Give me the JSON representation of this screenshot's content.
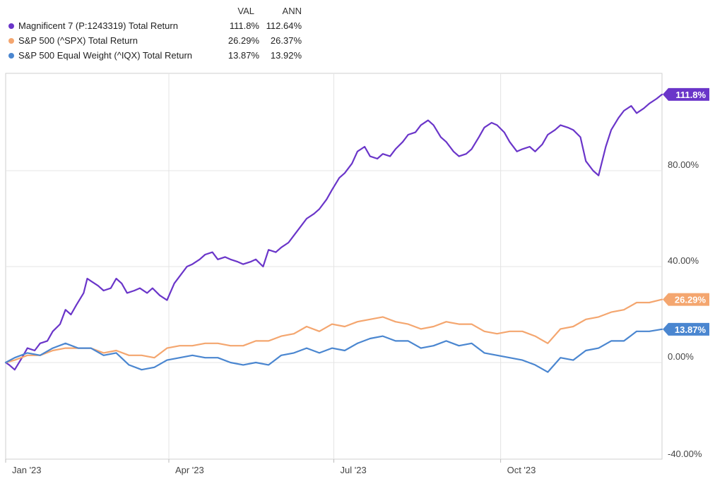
{
  "legend": {
    "col_val": "VAL",
    "col_ann": "ANN",
    "rows": [
      {
        "name": "Magnificent 7 (P:1243319) Total Return",
        "val": "111.8%",
        "ann": "112.64%",
        "color": "#6a35c9"
      },
      {
        "name": "S&P 500 (^SPX) Total Return",
        "val": "26.29%",
        "ann": "26.37%",
        "color": "#f4a66f"
      },
      {
        "name": "S&P 500 Equal Weight (^IQX) Total Return",
        "val": "13.87%",
        "ann": "13.92%",
        "color": "#4a86d0"
      }
    ]
  },
  "chart_data": {
    "type": "line",
    "x_range": [
      "2023-01-01",
      "2023-12-29"
    ],
    "x_ticks": [
      {
        "date": "2023-01-01",
        "label": "Jan '23"
      },
      {
        "date": "2023-04-01",
        "label": "Apr '23"
      },
      {
        "date": "2023-07-01",
        "label": "Jul '23"
      },
      {
        "date": "2023-10-01",
        "label": "Oct '23"
      }
    ],
    "y_range": [
      -40,
      120
    ],
    "y_ticks": [
      {
        "value": 80,
        "label": "80.00%"
      },
      {
        "value": 40,
        "label": "40.00%"
      },
      {
        "value": 0,
        "label": "0.00%"
      },
      {
        "value": -40,
        "label": "-40.00%"
      }
    ],
    "grid": true,
    "legend_position": "top-left",
    "series": [
      {
        "name": "Magnificent 7 (P:1243319) Total Return",
        "color": "#6a35c9",
        "end_label": "111.8%",
        "points": [
          [
            "2023-01-01",
            0
          ],
          [
            "2023-01-03",
            -1
          ],
          [
            "2023-01-06",
            -3
          ],
          [
            "2023-01-10",
            2
          ],
          [
            "2023-01-13",
            6
          ],
          [
            "2023-01-17",
            5
          ],
          [
            "2023-01-20",
            8
          ],
          [
            "2023-01-24",
            9
          ],
          [
            "2023-01-27",
            13
          ],
          [
            "2023-01-31",
            16
          ],
          [
            "2023-02-03",
            22
          ],
          [
            "2023-02-06",
            20
          ],
          [
            "2023-02-09",
            24
          ],
          [
            "2023-02-13",
            29
          ],
          [
            "2023-02-15",
            35
          ],
          [
            "2023-02-17",
            34
          ],
          [
            "2023-02-21",
            32
          ],
          [
            "2023-02-24",
            30
          ],
          [
            "2023-02-28",
            31
          ],
          [
            "2023-03-03",
            35
          ],
          [
            "2023-03-06",
            33
          ],
          [
            "2023-03-09",
            29
          ],
          [
            "2023-03-13",
            30
          ],
          [
            "2023-03-16",
            31
          ],
          [
            "2023-03-20",
            29
          ],
          [
            "2023-03-23",
            31
          ],
          [
            "2023-03-27",
            28
          ],
          [
            "2023-03-31",
            26
          ],
          [
            "2023-04-04",
            33
          ],
          [
            "2023-04-07",
            36
          ],
          [
            "2023-04-11",
            40
          ],
          [
            "2023-04-14",
            41
          ],
          [
            "2023-04-18",
            43
          ],
          [
            "2023-04-21",
            45
          ],
          [
            "2023-04-25",
            46
          ],
          [
            "2023-04-28",
            43
          ],
          [
            "2023-05-02",
            44
          ],
          [
            "2023-05-05",
            43
          ],
          [
            "2023-05-09",
            42
          ],
          [
            "2023-05-12",
            41
          ],
          [
            "2023-05-16",
            42
          ],
          [
            "2023-05-19",
            43
          ],
          [
            "2023-05-23",
            40
          ],
          [
            "2023-05-26",
            47
          ],
          [
            "2023-05-30",
            46
          ],
          [
            "2023-06-02",
            48
          ],
          [
            "2023-06-06",
            50
          ],
          [
            "2023-06-09",
            53
          ],
          [
            "2023-06-13",
            57
          ],
          [
            "2023-06-16",
            60
          ],
          [
            "2023-06-20",
            62
          ],
          [
            "2023-06-23",
            64
          ],
          [
            "2023-06-27",
            68
          ],
          [
            "2023-06-30",
            72
          ],
          [
            "2023-07-04",
            77
          ],
          [
            "2023-07-07",
            79
          ],
          [
            "2023-07-11",
            83
          ],
          [
            "2023-07-14",
            88
          ],
          [
            "2023-07-18",
            90
          ],
          [
            "2023-07-21",
            86
          ],
          [
            "2023-07-25",
            85
          ],
          [
            "2023-07-28",
            87
          ],
          [
            "2023-08-01",
            86
          ],
          [
            "2023-08-04",
            89
          ],
          [
            "2023-08-08",
            92
          ],
          [
            "2023-08-11",
            95
          ],
          [
            "2023-08-15",
            96
          ],
          [
            "2023-08-18",
            99
          ],
          [
            "2023-08-22",
            101
          ],
          [
            "2023-08-25",
            99
          ],
          [
            "2023-08-29",
            94
          ],
          [
            "2023-09-01",
            92
          ],
          [
            "2023-09-05",
            88
          ],
          [
            "2023-09-08",
            86
          ],
          [
            "2023-09-12",
            87
          ],
          [
            "2023-09-15",
            89
          ],
          [
            "2023-09-19",
            94
          ],
          [
            "2023-09-22",
            98
          ],
          [
            "2023-09-26",
            100
          ],
          [
            "2023-09-29",
            99
          ],
          [
            "2023-10-03",
            96
          ],
          [
            "2023-10-06",
            92
          ],
          [
            "2023-10-10",
            88
          ],
          [
            "2023-10-13",
            89
          ],
          [
            "2023-10-17",
            90
          ],
          [
            "2023-10-20",
            88
          ],
          [
            "2023-10-24",
            91
          ],
          [
            "2023-10-27",
            95
          ],
          [
            "2023-10-31",
            97
          ],
          [
            "2023-11-03",
            99
          ],
          [
            "2023-11-07",
            98
          ],
          [
            "2023-11-10",
            97
          ],
          [
            "2023-11-14",
            94
          ],
          [
            "2023-11-17",
            84
          ],
          [
            "2023-11-21",
            80
          ],
          [
            "2023-11-24",
            78
          ],
          [
            "2023-11-28",
            90
          ],
          [
            "2023-12-01",
            97
          ],
          [
            "2023-12-05",
            102
          ],
          [
            "2023-12-08",
            105
          ],
          [
            "2023-12-12",
            107
          ],
          [
            "2023-12-15",
            104
          ],
          [
            "2023-12-19",
            106
          ],
          [
            "2023-12-22",
            108
          ],
          [
            "2023-12-26",
            110
          ],
          [
            "2023-12-29",
            111.8
          ]
        ]
      },
      {
        "name": "S&P 500 (^SPX) Total Return",
        "color": "#f4a66f",
        "end_label": "26.29%",
        "points": [
          [
            "2023-01-01",
            0
          ],
          [
            "2023-01-06",
            1
          ],
          [
            "2023-01-13",
            3
          ],
          [
            "2023-01-20",
            3
          ],
          [
            "2023-01-27",
            5
          ],
          [
            "2023-02-03",
            6
          ],
          [
            "2023-02-10",
            6
          ],
          [
            "2023-02-17",
            6
          ],
          [
            "2023-02-24",
            4
          ],
          [
            "2023-03-03",
            5
          ],
          [
            "2023-03-10",
            3
          ],
          [
            "2023-03-17",
            3
          ],
          [
            "2023-03-24",
            2
          ],
          [
            "2023-03-31",
            6
          ],
          [
            "2023-04-07",
            7
          ],
          [
            "2023-04-14",
            7
          ],
          [
            "2023-04-21",
            8
          ],
          [
            "2023-04-28",
            8
          ],
          [
            "2023-05-05",
            7
          ],
          [
            "2023-05-12",
            7
          ],
          [
            "2023-05-19",
            9
          ],
          [
            "2023-05-26",
            9
          ],
          [
            "2023-06-02",
            11
          ],
          [
            "2023-06-09",
            12
          ],
          [
            "2023-06-16",
            15
          ],
          [
            "2023-06-23",
            13
          ],
          [
            "2023-06-30",
            16
          ],
          [
            "2023-07-07",
            15
          ],
          [
            "2023-07-14",
            17
          ],
          [
            "2023-07-21",
            18
          ],
          [
            "2023-07-28",
            19
          ],
          [
            "2023-08-04",
            17
          ],
          [
            "2023-08-11",
            16
          ],
          [
            "2023-08-18",
            14
          ],
          [
            "2023-08-25",
            15
          ],
          [
            "2023-09-01",
            17
          ],
          [
            "2023-09-08",
            16
          ],
          [
            "2023-09-15",
            16
          ],
          [
            "2023-09-22",
            13
          ],
          [
            "2023-09-29",
            12
          ],
          [
            "2023-10-06",
            13
          ],
          [
            "2023-10-13",
            13
          ],
          [
            "2023-10-20",
            11
          ],
          [
            "2023-10-27",
            8
          ],
          [
            "2023-11-03",
            14
          ],
          [
            "2023-11-10",
            15
          ],
          [
            "2023-11-17",
            18
          ],
          [
            "2023-11-24",
            19
          ],
          [
            "2023-12-01",
            21
          ],
          [
            "2023-12-08",
            22
          ],
          [
            "2023-12-15",
            25
          ],
          [
            "2023-12-22",
            25
          ],
          [
            "2023-12-29",
            26.29
          ]
        ]
      },
      {
        "name": "S&P 500 Equal Weight (^IQX) Total Return",
        "color": "#4a86d0",
        "end_label": "13.87%",
        "points": [
          [
            "2023-01-01",
            0
          ],
          [
            "2023-01-06",
            2
          ],
          [
            "2023-01-13",
            4
          ],
          [
            "2023-01-20",
            3
          ],
          [
            "2023-01-27",
            6
          ],
          [
            "2023-02-03",
            8
          ],
          [
            "2023-02-10",
            6
          ],
          [
            "2023-02-17",
            6
          ],
          [
            "2023-02-24",
            3
          ],
          [
            "2023-03-03",
            4
          ],
          [
            "2023-03-10",
            -1
          ],
          [
            "2023-03-17",
            -3
          ],
          [
            "2023-03-24",
            -2
          ],
          [
            "2023-03-31",
            1
          ],
          [
            "2023-04-07",
            2
          ],
          [
            "2023-04-14",
            3
          ],
          [
            "2023-04-21",
            2
          ],
          [
            "2023-04-28",
            2
          ],
          [
            "2023-05-05",
            0
          ],
          [
            "2023-05-12",
            -1
          ],
          [
            "2023-05-19",
            0
          ],
          [
            "2023-05-26",
            -1
          ],
          [
            "2023-06-02",
            3
          ],
          [
            "2023-06-09",
            4
          ],
          [
            "2023-06-16",
            6
          ],
          [
            "2023-06-23",
            4
          ],
          [
            "2023-06-30",
            6
          ],
          [
            "2023-07-07",
            5
          ],
          [
            "2023-07-14",
            8
          ],
          [
            "2023-07-21",
            10
          ],
          [
            "2023-07-28",
            11
          ],
          [
            "2023-08-04",
            9
          ],
          [
            "2023-08-11",
            9
          ],
          [
            "2023-08-18",
            6
          ],
          [
            "2023-08-25",
            7
          ],
          [
            "2023-09-01",
            9
          ],
          [
            "2023-09-08",
            7
          ],
          [
            "2023-09-15",
            8
          ],
          [
            "2023-09-22",
            4
          ],
          [
            "2023-09-29",
            3
          ],
          [
            "2023-10-06",
            2
          ],
          [
            "2023-10-13",
            1
          ],
          [
            "2023-10-20",
            -1
          ],
          [
            "2023-10-27",
            -4
          ],
          [
            "2023-11-03",
            2
          ],
          [
            "2023-11-10",
            1
          ],
          [
            "2023-11-17",
            5
          ],
          [
            "2023-11-24",
            6
          ],
          [
            "2023-12-01",
            9
          ],
          [
            "2023-12-08",
            9
          ],
          [
            "2023-12-15",
            13
          ],
          [
            "2023-12-22",
            13
          ],
          [
            "2023-12-29",
            13.87
          ]
        ]
      }
    ]
  }
}
